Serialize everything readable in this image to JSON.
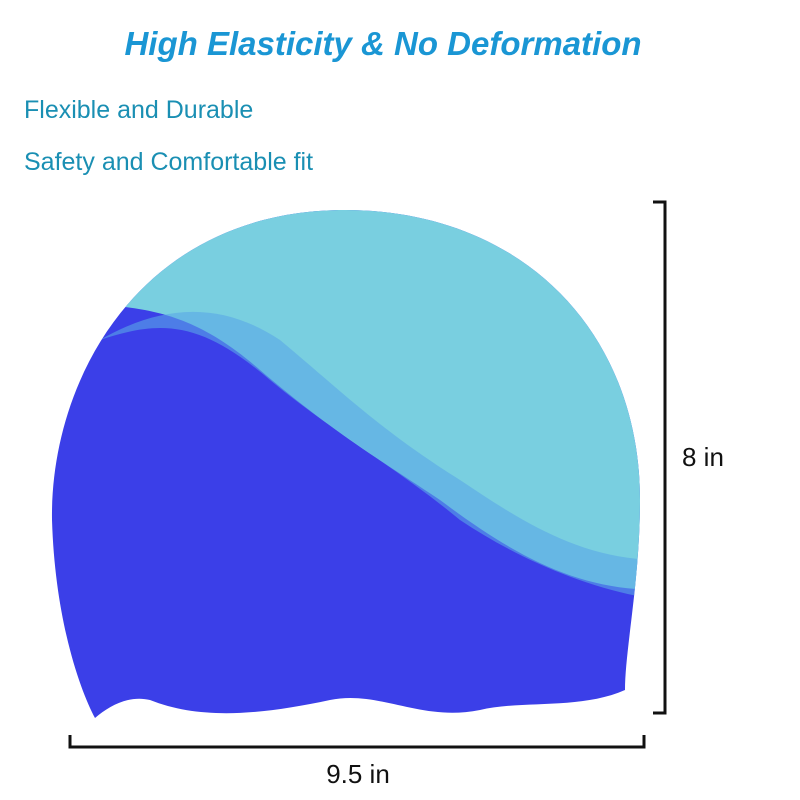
{
  "header": {
    "title": "High Elasticity & No Deformation"
  },
  "features": [
    "Flexible and Durable",
    "Safety and Comfortable fit"
  ],
  "dimensions": {
    "height": "8 in",
    "width": "9.5 in"
  }
}
